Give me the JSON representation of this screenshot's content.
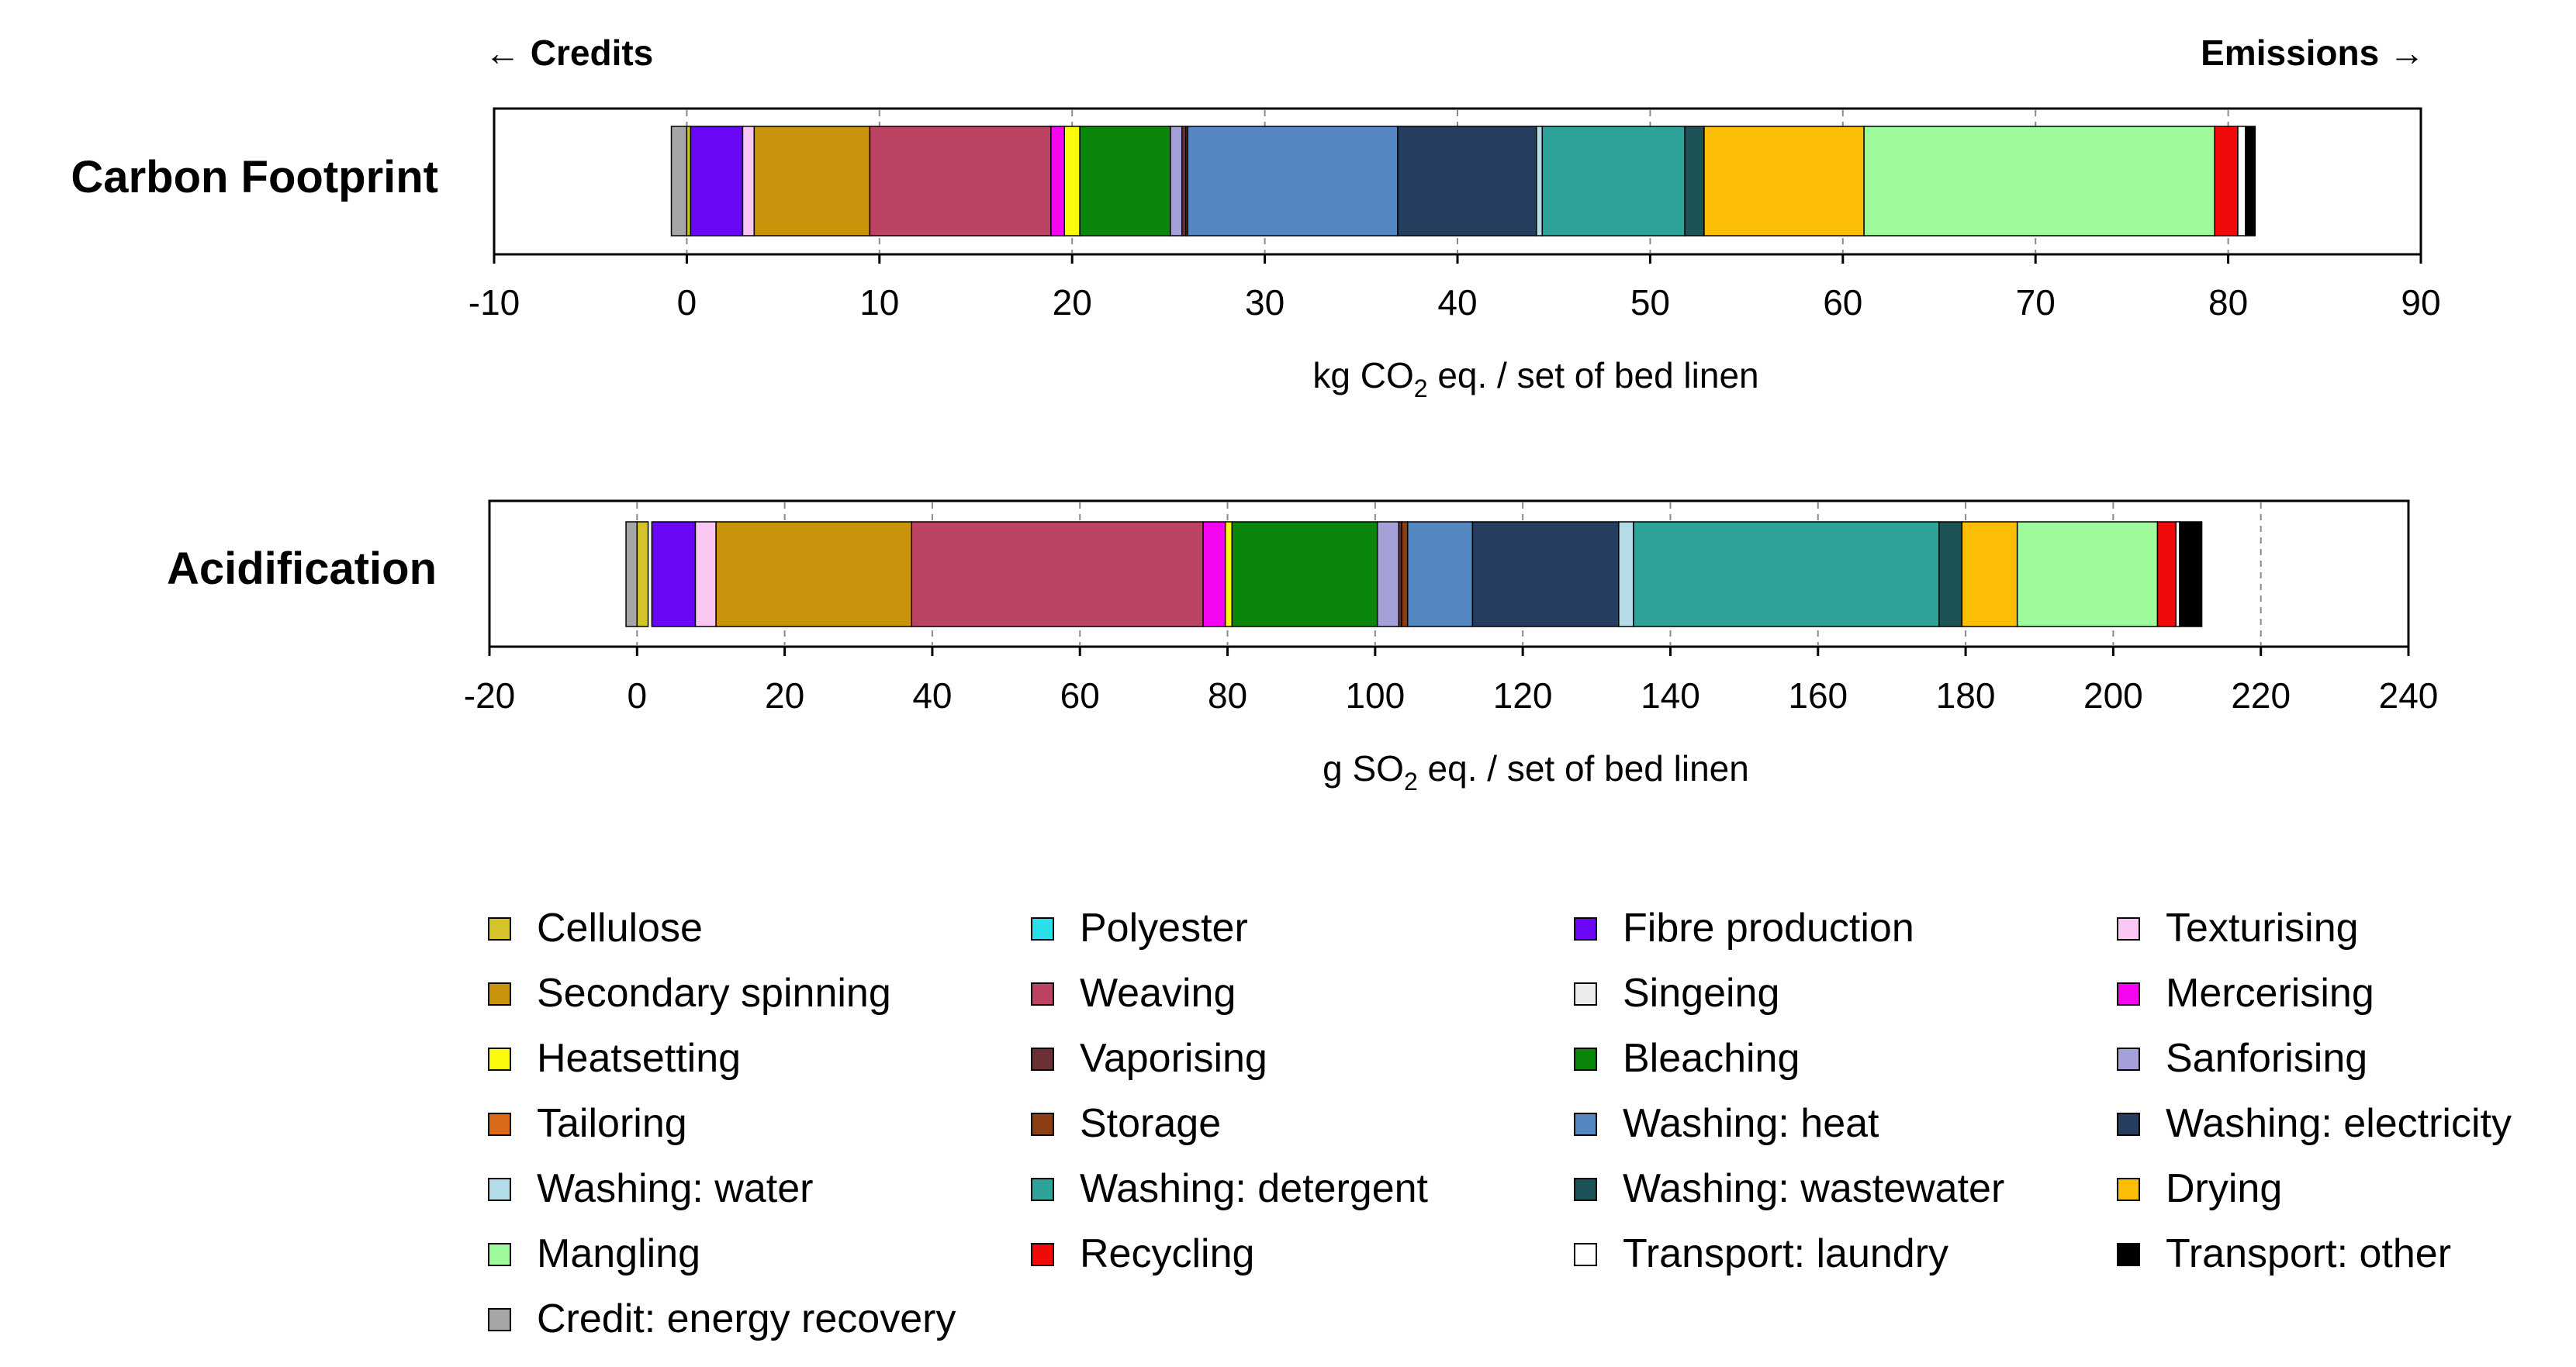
{
  "direction_labels": {
    "credits": "← Credits",
    "emissions": "Emissions →"
  },
  "chart_data": [
    {
      "type": "bar",
      "orientation": "horizontal-stacked",
      "title": "Carbon Footprint",
      "xlabel_parts": [
        "kg CO",
        "2",
        " eq. / set of bed linen"
      ],
      "xlim": [
        -10,
        90
      ],
      "xticks": [
        -10,
        0,
        10,
        20,
        30,
        40,
        50,
        60,
        70,
        80,
        90
      ],
      "gridlines": [
        0,
        10,
        20,
        30,
        40,
        50,
        60,
        70,
        80
      ],
      "segments": [
        {
          "name": "Credit: energy recovery",
          "start": -0.8,
          "end": 0
        },
        {
          "name": "Cellulose",
          "start": 0,
          "end": 0.2
        },
        {
          "name": "Fibre production",
          "start": 0.2,
          "end": 2.9
        },
        {
          "name": "Texturising",
          "start": 2.9,
          "end": 3.5
        },
        {
          "name": "Secondary spinning",
          "start": 3.5,
          "end": 9.5
        },
        {
          "name": "Weaving",
          "start": 9.5,
          "end": 18.9
        },
        {
          "name": "Mercerising",
          "start": 18.9,
          "end": 19.6
        },
        {
          "name": "Heatsetting",
          "start": 19.6,
          "end": 20.4
        },
        {
          "name": "Bleaching",
          "start": 20.4,
          "end": 25.1
        },
        {
          "name": "Sanforising",
          "start": 25.1,
          "end": 25.7
        },
        {
          "name": "Vaporising",
          "start": 25.7,
          "end": 25.9
        },
        {
          "name": "Storage",
          "start": 25.9,
          "end": 26.0
        },
        {
          "name": "Washing: heat",
          "start": 26.0,
          "end": 36.9
        },
        {
          "name": "Washing: electricity",
          "start": 36.9,
          "end": 44.1
        },
        {
          "name": "Washing: water",
          "start": 44.1,
          "end": 44.4
        },
        {
          "name": "Washing: detergent",
          "start": 44.4,
          "end": 51.8
        },
        {
          "name": "Washing: wastewater",
          "start": 51.8,
          "end": 52.8
        },
        {
          "name": "Drying",
          "start": 52.8,
          "end": 61.1
        },
        {
          "name": "Mangling",
          "start": 61.1,
          "end": 79.3
        },
        {
          "name": "Recycling",
          "start": 79.3,
          "end": 80.5
        },
        {
          "name": "Transport: laundry",
          "start": 80.5,
          "end": 80.9
        },
        {
          "name": "Transport: other",
          "start": 80.9,
          "end": 81.4
        }
      ]
    },
    {
      "type": "bar",
      "orientation": "horizontal-stacked",
      "title": "Acidification",
      "xlabel_parts": [
        "g SO",
        "2",
        " eq. / set of bed linen"
      ],
      "xlim": [
        -20,
        240
      ],
      "xticks": [
        -20,
        0,
        20,
        40,
        60,
        80,
        100,
        120,
        140,
        160,
        180,
        200,
        220,
        240
      ],
      "gridlines": [
        0,
        20,
        40,
        60,
        80,
        100,
        120,
        140,
        160,
        180,
        200,
        220
      ],
      "segments": [
        {
          "name": "Credit: energy recovery",
          "start": -1.5,
          "end": 0
        },
        {
          "name": "Cellulose",
          "start": 0,
          "end": 1.5
        },
        {
          "name": "Fibre production",
          "start": 2.0,
          "end": 7.9
        },
        {
          "name": "Texturising",
          "start": 7.9,
          "end": 10.7
        },
        {
          "name": "Secondary spinning",
          "start": 10.7,
          "end": 37.2
        },
        {
          "name": "Weaving",
          "start": 37.2,
          "end": 76.7
        },
        {
          "name": "Mercerising",
          "start": 76.7,
          "end": 79.7
        },
        {
          "name": "Heatsetting",
          "start": 79.7,
          "end": 80.6
        },
        {
          "name": "Bleaching",
          "start": 80.6,
          "end": 100.3
        },
        {
          "name": "Sanforising",
          "start": 100.3,
          "end": 103.2
        },
        {
          "name": "Vaporising",
          "start": 103.2,
          "end": 103.6
        },
        {
          "name": "Storage",
          "start": 103.6,
          "end": 104.4
        },
        {
          "name": "Washing: heat",
          "start": 104.4,
          "end": 113.2
        },
        {
          "name": "Washing: electricity",
          "start": 113.2,
          "end": 133.0
        },
        {
          "name": "Washing: water",
          "start": 133.0,
          "end": 135.0
        },
        {
          "name": "Washing: detergent",
          "start": 135.0,
          "end": 176.4
        },
        {
          "name": "Washing: wastewater",
          "start": 176.4,
          "end": 179.5
        },
        {
          "name": "Drying",
          "start": 179.5,
          "end": 187.0
        },
        {
          "name": "Mangling",
          "start": 187.0,
          "end": 206.0
        },
        {
          "name": "Recycling",
          "start": 206.0,
          "end": 208.5
        },
        {
          "name": "Transport: laundry",
          "start": 208.5,
          "end": 209.0
        },
        {
          "name": "Transport: other",
          "start": 209.0,
          "end": 212.0
        }
      ]
    }
  ],
  "legend": [
    {
      "name": "Cellulose",
      "color": "#d4c42a"
    },
    {
      "name": "Polyester",
      "color": "#29e0e8"
    },
    {
      "name": "Fibre production",
      "color": "#6a08f5"
    },
    {
      "name": "Texturising",
      "color": "#f9c7f1"
    },
    {
      "name": "Secondary spinning",
      "color": "#c9930c"
    },
    {
      "name": "Weaving",
      "color": "#bd4362"
    },
    {
      "name": "Singeing",
      "color": "#ececec"
    },
    {
      "name": "Mercerising",
      "color": "#f407f0"
    },
    {
      "name": "Heatsetting",
      "color": "#fbf90d"
    },
    {
      "name": "Vaporising",
      "color": "#6b3034"
    },
    {
      "name": "Bleaching",
      "color": "#0a860a"
    },
    {
      "name": "Sanforising",
      "color": "#a3a1d8"
    },
    {
      "name": "Tailoring",
      "color": "#d86a1a"
    },
    {
      "name": "Storage",
      "color": "#8e3e14"
    },
    {
      "name": "Washing: heat",
      "color": "#5587c2"
    },
    {
      "name": "Washing: electricity",
      "color": "#253e5f"
    },
    {
      "name": "Washing: water",
      "color": "#b3dbe8"
    },
    {
      "name": "Washing: detergent",
      "color": "#2ea39a"
    },
    {
      "name": "Washing: wastewater",
      "color": "#1d5257"
    },
    {
      "name": "Drying",
      "color": "#fbbd06"
    },
    {
      "name": "Mangling",
      "color": "#9dfb9b"
    },
    {
      "name": "Recycling",
      "color": "#f00a0a"
    },
    {
      "name": "Transport: laundry",
      "color": "#ffffff"
    },
    {
      "name": "Transport: other",
      "color": "#000000"
    },
    {
      "name": "Credit: energy recovery",
      "color": "#a6a6a6"
    }
  ]
}
